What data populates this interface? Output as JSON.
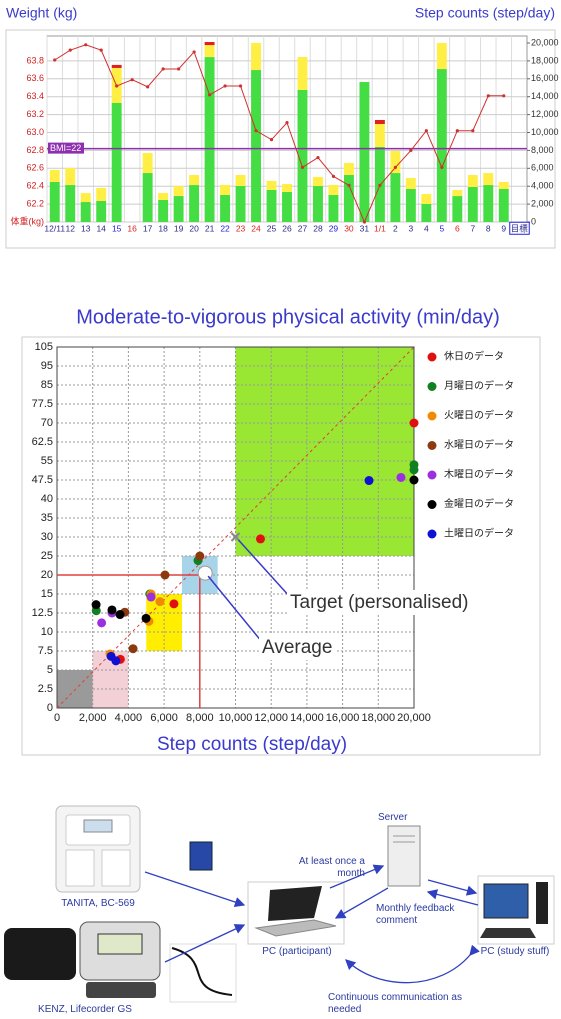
{
  "chart_data": [
    {
      "type": "bar-line",
      "y_label": "Weight (kg)",
      "y2_label": "Step counts (step/day)",
      "categories": [
        "12/11",
        "12",
        "13",
        "14",
        "15",
        "16",
        "17",
        "18",
        "19",
        "20",
        "21",
        "22",
        "23",
        "24",
        "25",
        "26",
        "27",
        "28",
        "29",
        "30",
        "31",
        "1/1",
        "2",
        "3",
        "4",
        "5",
        "6",
        "7",
        "8",
        "9",
        "目標"
      ],
      "category_colors": [
        "#2a2a8a",
        "#2a2a8a",
        "#2a2a8a",
        "#2a2a8a",
        "#2020e0",
        "#e02020",
        "#2a2a8a",
        "#2a2a8a",
        "#2a2a8a",
        "#2a2a8a",
        "#2a2a8a",
        "#2020e0",
        "#e02020",
        "#e02020",
        "#2a2a8a",
        "#2a2a8a",
        "#2a2a8a",
        "#2a2a8a",
        "#2020e0",
        "#e02020",
        "#2a2a8a",
        "#e02020",
        "#2a2a8a",
        "#2a2a8a",
        "#2a2a8a",
        "#2020e0",
        "#e02020",
        "#2a2a8a",
        "#2a2a8a",
        "#2a2a8a",
        "#2a2a8a"
      ],
      "series": [
        {
          "type": "line",
          "color": "#d03030",
          "values": [
            63.81,
            63.92,
            63.98,
            63.92,
            63.52,
            63.59,
            63.51,
            63.71,
            63.71,
            63.9,
            63.42,
            63.52,
            63.52,
            63.02,
            62.92,
            63.11,
            62.61,
            62.72,
            62.51,
            62.41,
            62.0,
            62.41,
            62.61,
            62.8,
            63.02,
            62.61,
            63.02,
            63.02,
            63.41,
            63.41,
            null
          ]
        },
        {
          "type": "bar",
          "axis": "y2",
          "color": "#44dd44",
          "values": [
            4470,
            4130,
            2230,
            2350,
            13300,
            0,
            5470,
            2460,
            2900,
            4130,
            18430,
            3020,
            4020,
            16980,
            3580,
            3350,
            14750,
            4020,
            3020,
            5250,
            15640,
            8380,
            5470,
            3690,
            2010,
            17090,
            2900,
            3910,
            4130,
            3690,
            null
          ]
        },
        {
          "type": "bar",
          "axis": "y2",
          "color": "#ffee44",
          "values": [
            1340,
            1900,
            1000,
            1450,
            3910,
            0,
            2240,
            780,
            1120,
            1120,
            1340,
            1120,
            1230,
            3020,
            1010,
            890,
            3690,
            1010,
            1120,
            1340,
            0,
            2570,
            2460,
            1230,
            1120,
            2910,
            670,
            1340,
            1340,
            780,
            null
          ]
        },
        {
          "type": "bar",
          "axis": "y2",
          "color": "#e02020",
          "values": [
            0,
            0,
            0,
            0,
            340,
            0,
            0,
            0,
            0,
            0,
            340,
            0,
            0,
            0,
            0,
            0,
            0,
            0,
            0,
            0,
            0,
            450,
            0,
            0,
            0,
            0,
            0,
            0,
            0,
            0,
            null
          ]
        }
      ],
      "ylim": [
        62,
        64
      ],
      "yticks": [
        {
          "value": 62,
          "label": "体重(kg)"
        },
        62.2,
        62.4,
        62.6,
        62.8,
        {
          "value": 63,
          "label": "63.0"
        },
        63.2,
        63.4,
        63.6,
        63.8
      ],
      "y2lim": [
        0,
        20000
      ],
      "y2ticks": [
        0,
        {
          "value": 2000,
          "label": "2,000"
        },
        {
          "value": 4000,
          "label": "4,000"
        },
        {
          "value": 6000,
          "label": "6,000"
        },
        {
          "value": 8000,
          "label": "8,000"
        },
        {
          "value": 10000,
          "label": "10,000"
        },
        {
          "value": 12000,
          "label": "12,000"
        },
        {
          "value": 14000,
          "label": "14,000"
        },
        {
          "value": 16000,
          "label": "16,000"
        },
        {
          "value": 18000,
          "label": "18,000"
        },
        {
          "value": 20000,
          "label": "20,000"
        }
      ],
      "reference_line": {
        "value": 62.82,
        "label": "BMI=22",
        "color": "#8e2fb0"
      },
      "grid": true
    },
    {
      "type": "scatter",
      "title": "Moderate-to-vigorous physical activity (min/day)",
      "x_label": "Step counts (step/day)",
      "xlim": [
        0,
        20000
      ],
      "xticks": [
        0,
        {
          "value": 2000,
          "label": "2,000"
        },
        {
          "value": 4000,
          "label": "4,000"
        },
        {
          "value": 6000,
          "label": "6,000"
        },
        {
          "value": 8000,
          "label": "8,000"
        },
        {
          "value": 10000,
          "label": "10,000"
        },
        {
          "value": 12000,
          "label": "12,000"
        },
        {
          "value": 14000,
          "label": "14,000"
        },
        {
          "value": 16000,
          "label": "16,000"
        },
        {
          "value": 18000,
          "label": "18,000"
        },
        {
          "value": 20000,
          "label": "20,000"
        }
      ],
      "ylim": [
        0,
        105
      ],
      "yscale": "tick-spaced",
      "yticks": [
        0,
        2.5,
        5,
        7.5,
        10,
        12.5,
        15,
        20,
        25,
        30,
        35,
        40,
        47.5,
        55,
        62.5,
        70,
        77.5,
        85,
        95,
        105
      ],
      "regions": [
        {
          "x": [
            10000,
            20000
          ],
          "y": [
            25,
            105
          ],
          "color": "#99e633"
        },
        {
          "x": [
            0,
            2000
          ],
          "y": [
            0,
            5
          ],
          "color": "#9a9a9a"
        },
        {
          "x": [
            2000,
            4000
          ],
          "y": [
            0,
            7.5
          ],
          "color": "#f2d0d6"
        },
        {
          "x": [
            5000,
            7000
          ],
          "y": [
            7.5,
            15
          ],
          "color": "#ffee00"
        },
        {
          "x": [
            7000,
            9000
          ],
          "y": [
            15,
            25
          ],
          "color": "#a8d4ea"
        }
      ],
      "reference_point": {
        "x": 8000,
        "y": 20,
        "color": "#e04040"
      },
      "series": [
        {
          "name": "休日のデータ",
          "color": "#e01010",
          "x": [
            20000,
            11400,
            6550,
            3550
          ],
          "values": [
            70,
            29.5,
            13.7,
            6.4
          ]
        },
        {
          "name": "月曜日のデータ",
          "color": "#108020",
          "x": [
            20000,
            20000,
            7900,
            5200,
            2200
          ],
          "values": [
            53.5,
            51.5,
            23.8,
            15,
            12.8
          ]
        },
        {
          "name": "火曜日のデータ",
          "color": "#f08a00",
          "x": [
            5270,
            5770,
            2970,
            5150
          ],
          "values": [
            15,
            14,
            7.1,
            11.4
          ]
        },
        {
          "name": "水曜日のデータ",
          "color": "#8b3a10",
          "x": [
            6050,
            8000,
            4260,
            3800
          ],
          "values": [
            20,
            25,
            7.8,
            12.6
          ]
        },
        {
          "name": "木曜日のデータ",
          "color": "#9b30e0",
          "x": [
            19270,
            5270,
            3080,
            2500
          ],
          "values": [
            48.5,
            14.6,
            12.5,
            11.2
          ]
        },
        {
          "name": "金曜日のデータ",
          "color": "#000000",
          "x": [
            20000,
            4990,
            2190,
            3080,
            3530
          ],
          "values": [
            47.5,
            11.8,
            13.6,
            12.9,
            12.3
          ]
        },
        {
          "name": "土曜日のデータ",
          "color": "#1010d0",
          "x": [
            17480,
            3300,
            3030
          ],
          "values": [
            47.3,
            6.2,
            6.8
          ]
        }
      ],
      "annotations": [
        {
          "text": "Target (personalised)",
          "x": 10000,
          "y": 30
        },
        {
          "text": "Average",
          "x": 8300,
          "y": 20.5
        }
      ],
      "legend": "right",
      "grid": true
    }
  ],
  "diagram": {
    "devices": [
      "TANITA, BC-569",
      "KENZ, Lifecorder GS"
    ],
    "nodes": {
      "server": "Server",
      "pc_participant": "PC (participant)",
      "pc_study": "PC (study stuff)"
    },
    "edges": [
      "At least once a month",
      "Monthly feedback comment",
      "Continuous communication as needed"
    ]
  }
}
